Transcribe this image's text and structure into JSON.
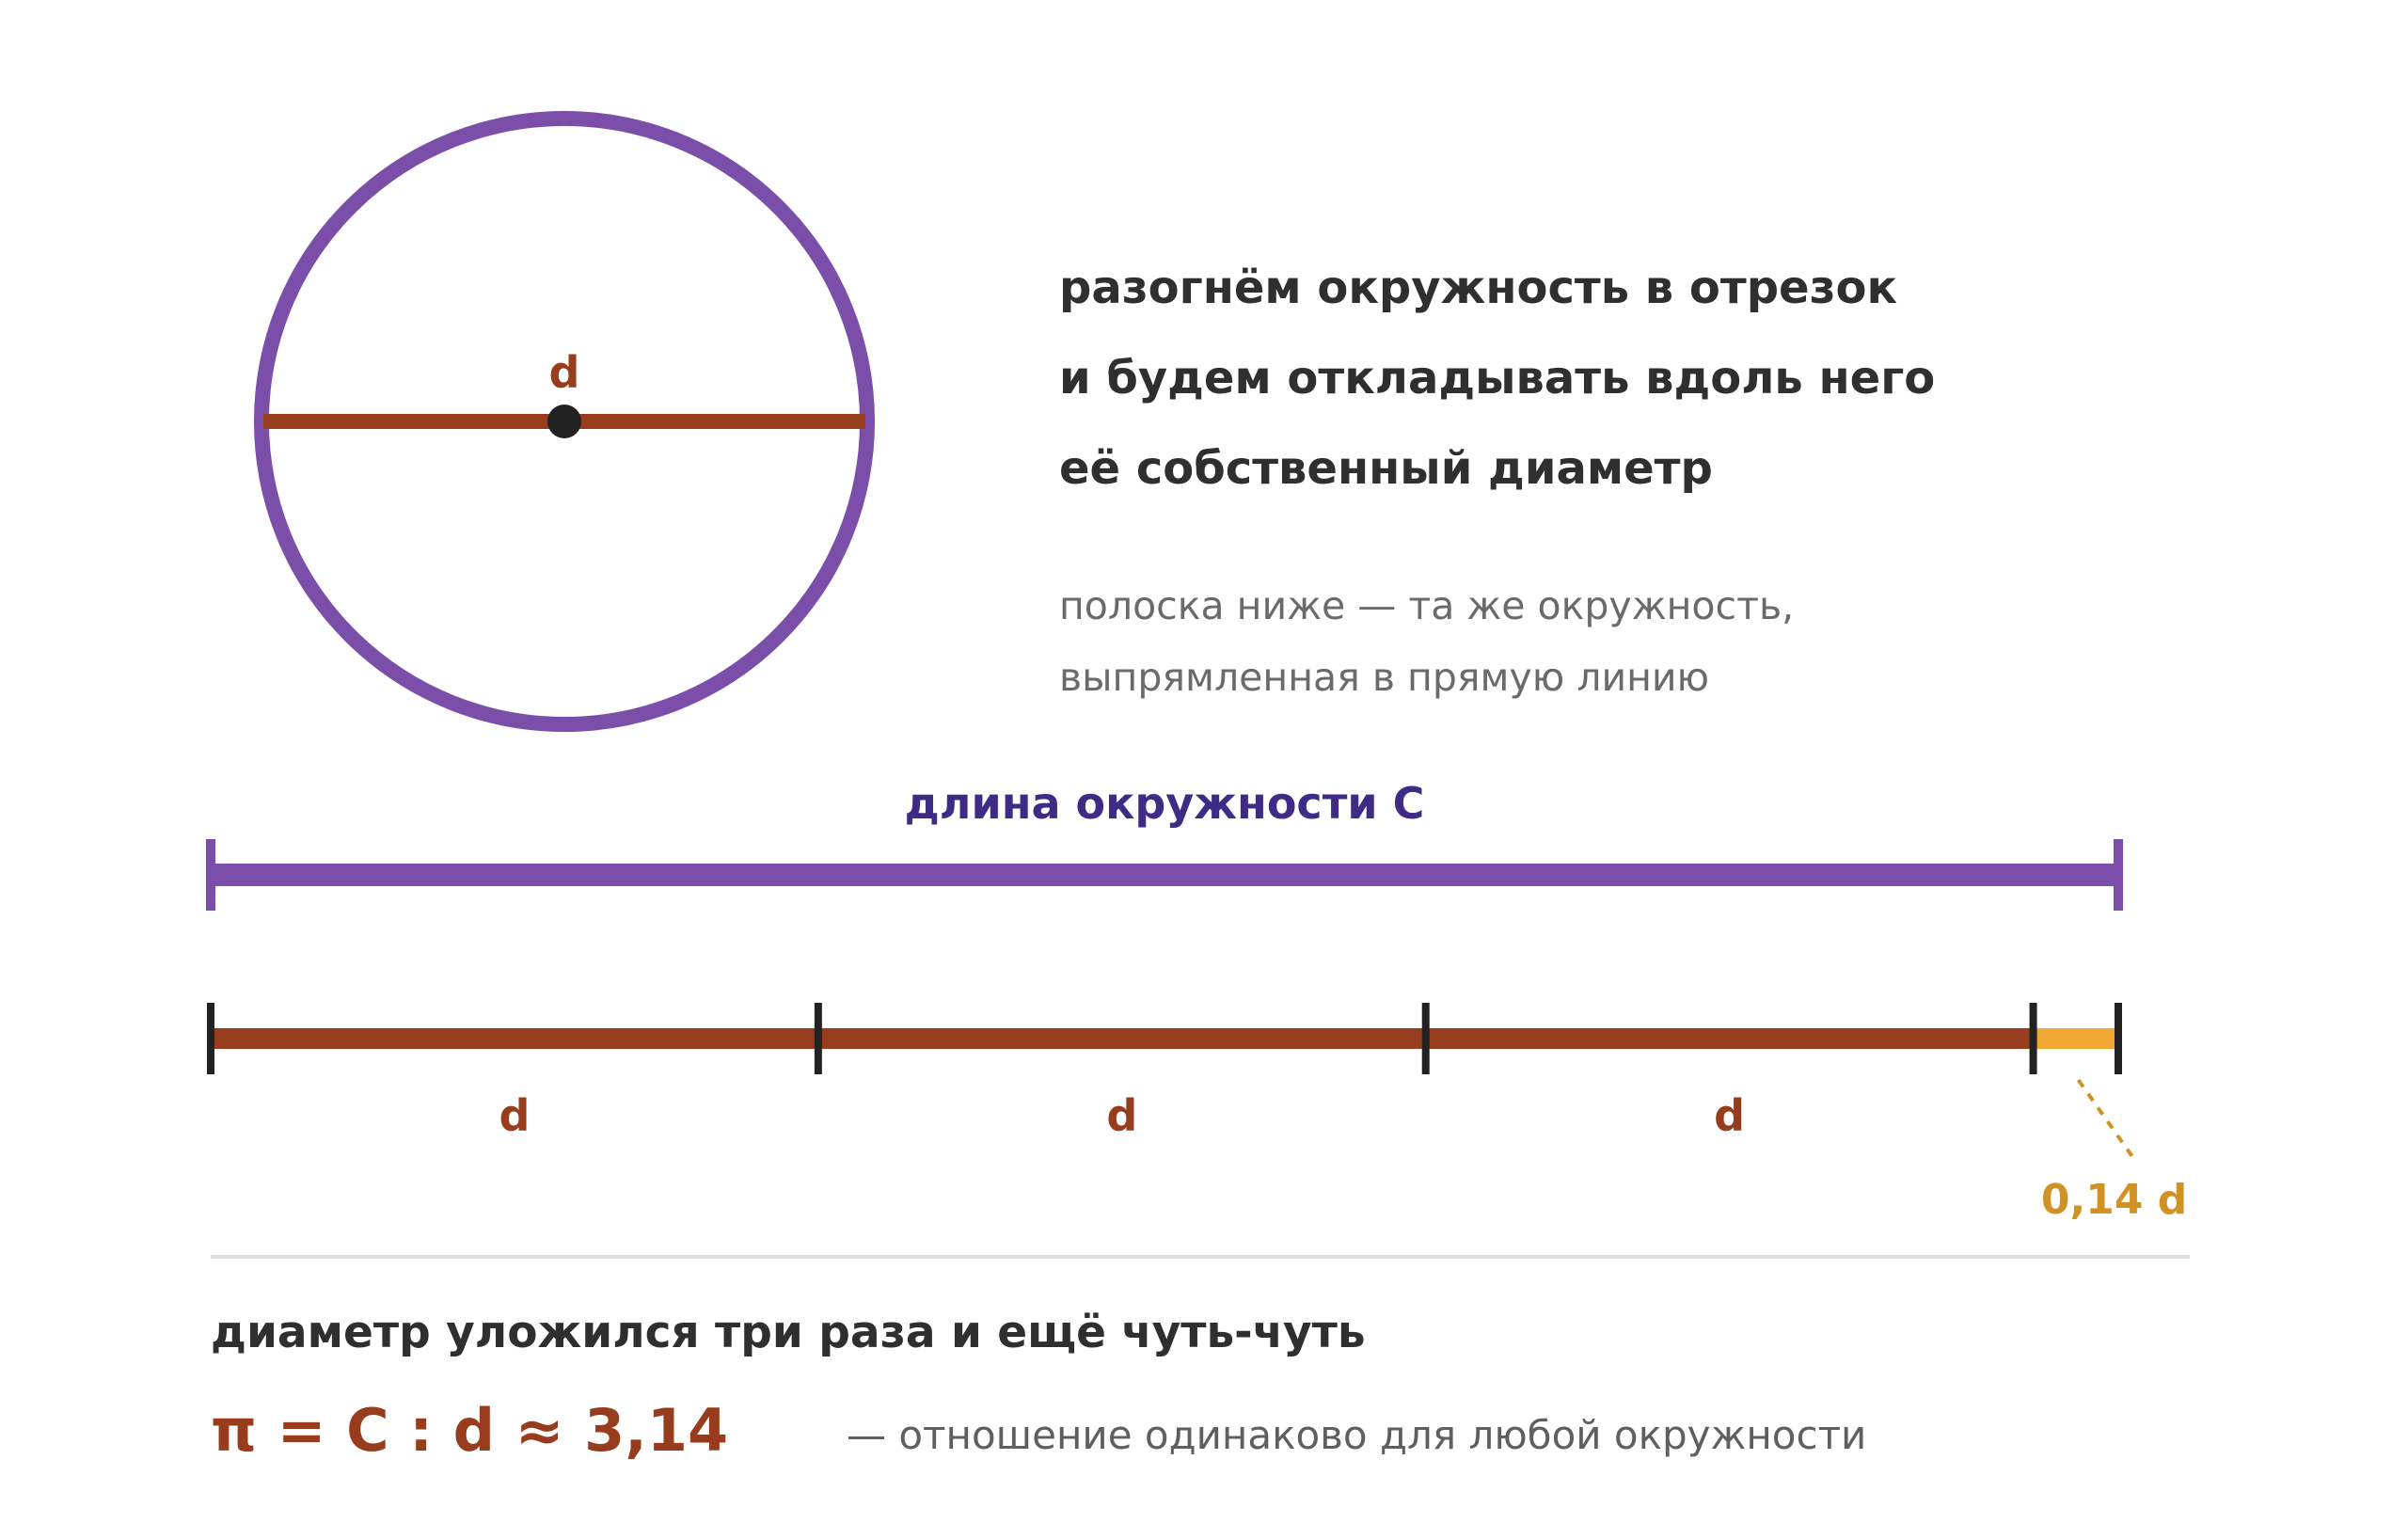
{
  "colors": {
    "circle": "#7b4fa9",
    "diameter": "#983c1e",
    "remainder": "#f0a832",
    "remainder_label": "#d19225",
    "circumference_label": "#3f2a86",
    "tick": "#222222",
    "divider": "#dddddd"
  },
  "circle": {
    "diameter_label": "d"
  },
  "heading": {
    "lines": [
      "разогнём окружность в отрезок",
      "и будем откладывать вдоль него",
      "её собственный диаметр"
    ]
  },
  "note": {
    "lines": [
      "полоска ниже — та же окружность,",
      "выпрямленная в прямую линию"
    ]
  },
  "circumference_bar": {
    "label": "длина окружности C"
  },
  "diameter_bar": {
    "segments": [
      {
        "label": "d",
        "length": 1
      },
      {
        "label": "d",
        "length": 1
      },
      {
        "label": "d",
        "length": 1
      }
    ],
    "remainder": {
      "label": "0,14 d",
      "length": 0.14
    }
  },
  "conclusion": {
    "text": "диаметр уложился три раза и ещё чуть-чуть"
  },
  "formula": {
    "text": "π = C : d ≈ 3,14",
    "note": "— отношение одинаково для любой окружности"
  }
}
